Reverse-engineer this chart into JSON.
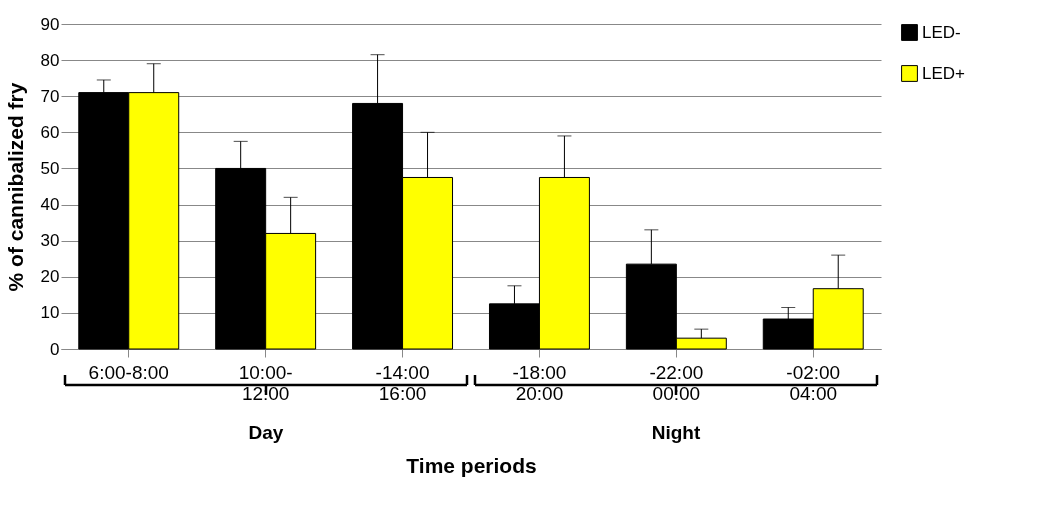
{
  "chart_data": {
    "type": "bar",
    "xlabel": "Time periods",
    "ylabel": "% of cannibalized fry",
    "categories": [
      "6:00-8:00",
      "10:00-\n12:00",
      "-14:00\n16:00",
      "-18:00\n20:00",
      "-22:00\n00:00",
      "-02:00\n04:00"
    ],
    "series": [
      {
        "name": "LED-",
        "color": "#000000",
        "values": [
          71,
          50,
          68,
          12.5,
          23.5,
          8.3
        ],
        "errors": [
          [
            71,
            74.5
          ],
          [
            50,
            57.5
          ],
          [
            68,
            81.5
          ],
          [
            12.5,
            17.5
          ],
          [
            23.5,
            33
          ],
          [
            8.3,
            11.5
          ]
        ]
      },
      {
        "name": "LED+",
        "color": "#ffff00",
        "values": [
          71,
          32,
          47.5,
          47.5,
          3,
          16.7
        ],
        "errors": [
          [
            71,
            79
          ],
          [
            32,
            42
          ],
          [
            47.5,
            60
          ],
          [
            47.5,
            59
          ],
          [
            3,
            5.5
          ],
          [
            16.7,
            26
          ]
        ]
      }
    ],
    "annotations": [
      "Day",
      "Night"
    ],
    "ylim": [
      0,
      90
    ],
    "yticks": [
      0,
      10,
      20,
      30,
      40,
      50,
      60,
      70,
      80,
      90
    ],
    "grid": "y",
    "legend": "right"
  }
}
